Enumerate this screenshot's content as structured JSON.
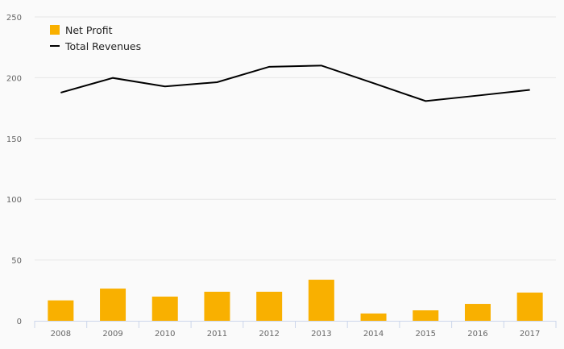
{
  "chart_data": {
    "type": "bar",
    "title": "",
    "xlabel": "",
    "ylabel": "",
    "ylim": [
      0,
      250
    ],
    "yticks": [
      0,
      50,
      100,
      150,
      200,
      250
    ],
    "grid": true,
    "legend_position": "top-left",
    "categories": [
      "2008",
      "2009",
      "2010",
      "2011",
      "2012",
      "2013",
      "2014",
      "2015",
      "2016",
      "2017"
    ],
    "series": [
      {
        "name": "Net Profit",
        "type": "bar",
        "color": "#f9b000",
        "values": [
          16.8,
          26.5,
          19.9,
          23.9,
          23.9,
          33.8,
          6.0,
          8.6,
          13.9,
          23.2
        ]
      },
      {
        "name": "Total Revenues",
        "type": "line",
        "color": "#000000",
        "values": [
          187.7,
          199.8,
          192.8,
          196.3,
          209.0,
          210.0,
          195.5,
          180.8,
          185.3,
          190.0
        ]
      }
    ]
  }
}
